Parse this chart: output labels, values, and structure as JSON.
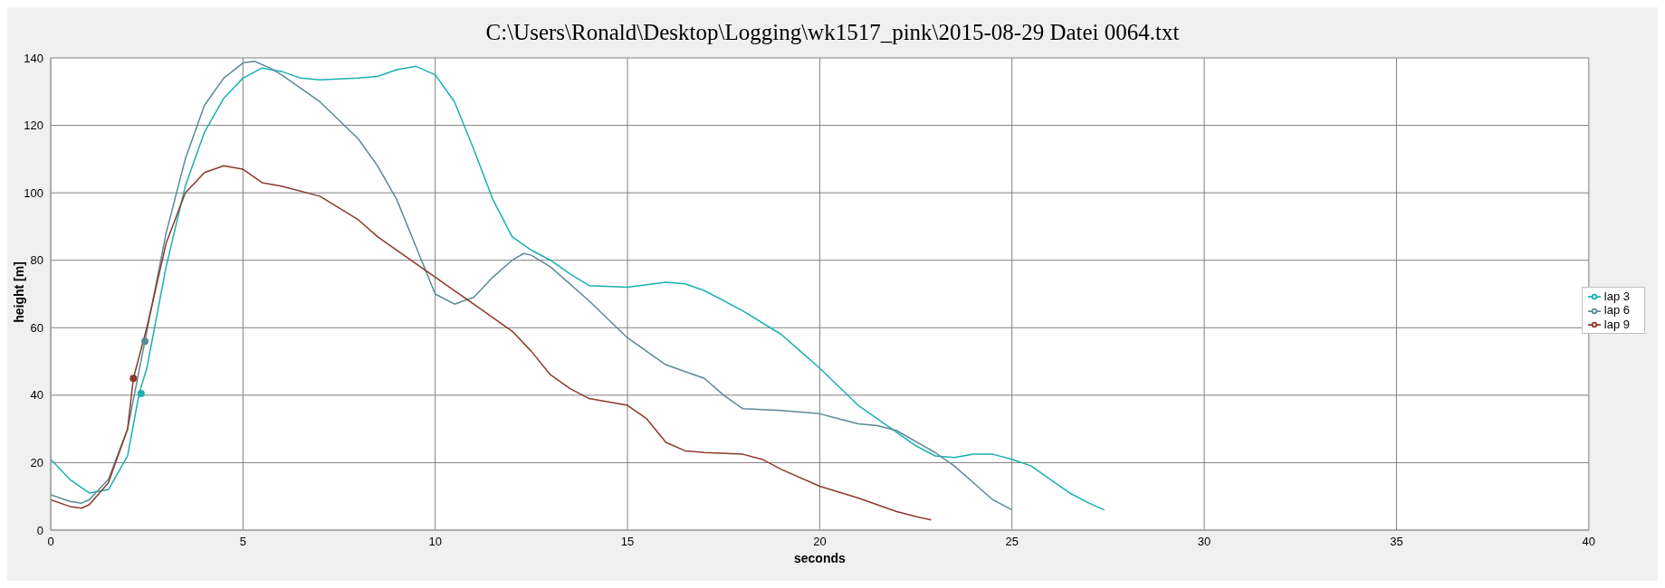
{
  "chart_data": {
    "type": "line",
    "title": "C:\\Users\\Ronald\\Desktop\\Logging\\wk1517_pink\\2015-08-29 Datei 0064.txt",
    "xlabel": "seconds",
    "ylabel": "height [m]",
    "xlim": [
      0,
      40
    ],
    "xticks": [
      0,
      5,
      10,
      15,
      20,
      25,
      30,
      35,
      40
    ],
    "ylim": [
      0,
      140
    ],
    "yticks": [
      0,
      20,
      40,
      60,
      80,
      100,
      120,
      140
    ],
    "grid": true,
    "legend": "right",
    "marker": "none",
    "line_style": "solid",
    "series": [
      {
        "name": "lap 3",
        "color": "#1ab0b0",
        "x": [
          0,
          0.5,
          1,
          1.5,
          2,
          2.3,
          2.5,
          3,
          3.5,
          4,
          4.5,
          5,
          5.5,
          6,
          6.5,
          7,
          8,
          8.5,
          9,
          9.5,
          10,
          10.5,
          11,
          11.5,
          12,
          12.5,
          13,
          13.5,
          14,
          15,
          16,
          16.5,
          17,
          18,
          19,
          19.5,
          20,
          21,
          22,
          22.5,
          23,
          23.5,
          24,
          24.5,
          25,
          25.5,
          26,
          26.5,
          27,
          27.4
        ],
        "values": [
          21,
          15,
          11,
          12,
          22,
          40.5,
          48,
          78,
          102,
          118,
          128,
          134,
          137,
          136,
          134,
          133.5,
          134,
          134.5,
          136.5,
          137.5,
          135,
          127,
          113,
          98,
          87,
          83,
          80,
          76,
          72.5,
          72,
          73.5,
          73,
          71,
          65,
          58,
          53,
          48,
          37,
          29,
          25,
          22,
          21.5,
          22.5,
          22.5,
          21,
          19,
          15,
          11,
          8,
          6
        ]
      },
      {
        "name": "lap 6",
        "color": "#5a8a96",
        "x": [
          0,
          0.5,
          0.8,
          1,
          1.5,
          2,
          2.45,
          3,
          3.5,
          4,
          4.5,
          5,
          5.3,
          5.7,
          6,
          7,
          8,
          8.5,
          9,
          9.5,
          10,
          10.5,
          11,
          11.5,
          12,
          12.3,
          12.5,
          13,
          14,
          15,
          16,
          16.5,
          17,
          17.5,
          18,
          19,
          20,
          20.5,
          21,
          21.5,
          22,
          23,
          23.5,
          24,
          24.5,
          25
        ],
        "values": [
          10.5,
          8.5,
          8,
          9,
          15,
          30,
          56,
          88,
          110,
          126,
          134,
          138.5,
          139,
          137,
          135,
          127,
          116,
          108,
          98,
          84,
          70,
          67,
          69,
          75,
          80,
          82,
          81.5,
          78,
          68,
          57,
          49,
          47,
          45,
          40,
          36,
          35.5,
          34.5,
          33,
          31.5,
          31,
          29.5,
          23,
          19,
          14,
          9,
          6
        ]
      },
      {
        "name": "lap 9",
        "color": "#8b3a2a",
        "x": [
          0,
          0.5,
          0.8,
          1,
          1.5,
          2,
          2.15,
          2.5,
          3,
          3.5,
          4,
          4.5,
          5,
          5.5,
          6,
          7,
          8,
          8.5,
          9,
          10,
          10.5,
          11,
          12,
          12.5,
          13,
          13.5,
          14,
          15,
          15.5,
          16,
          16.5,
          17,
          18,
          18.5,
          19,
          20,
          21,
          22,
          22.5,
          22.9
        ],
        "values": [
          9,
          7,
          6.5,
          7.5,
          14,
          30,
          45,
          60,
          85,
          100,
          106,
          108,
          107,
          103,
          102,
          99,
          92,
          87,
          83,
          75,
          71,
          67,
          59,
          53,
          46,
          42,
          39,
          37,
          33,
          26,
          23.5,
          23,
          22.5,
          21,
          18,
          13,
          9.5,
          5.5,
          4,
          3
        ]
      },
      {
        "type": "scatter",
        "color": "#1ab0b0",
        "marker": "circle",
        "x": [
          2.35
        ],
        "values": [
          40.5
        ]
      },
      {
        "type": "scatter",
        "color": "#5a8a96",
        "marker": "circle",
        "x": [
          2.45
        ],
        "values": [
          56
        ]
      },
      {
        "type": "scatter",
        "color": "#8b3a2a",
        "marker": "circle",
        "x": [
          2.15
        ],
        "values": [
          45
        ]
      }
    ]
  }
}
